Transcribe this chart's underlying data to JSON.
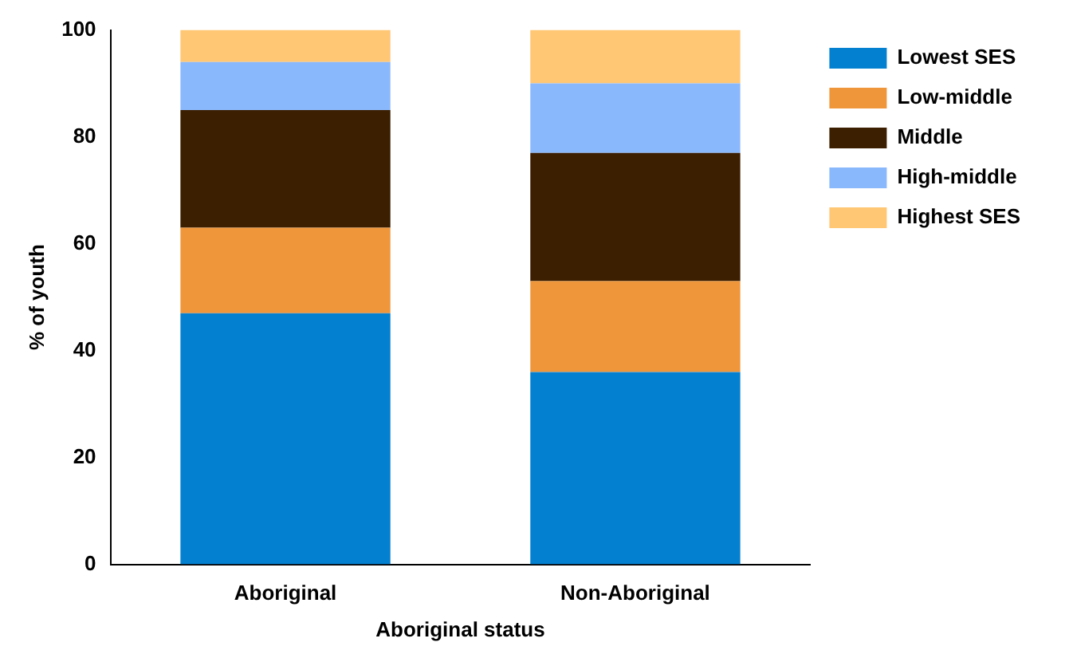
{
  "chart_data": {
    "type": "bar",
    "stacked": true,
    "xlabel": "Aboriginal status",
    "ylabel": "% of youth",
    "categories": [
      "Aboriginal",
      "Non-Aboriginal"
    ],
    "series": [
      {
        "name": "Lowest SES",
        "color": "#0480d1",
        "values": [
          47,
          36
        ]
      },
      {
        "name": "Low-middle",
        "color": "#f0963a",
        "values": [
          16,
          17
        ]
      },
      {
        "name": "Middle",
        "color": "#3c1e00",
        "values": [
          22,
          24
        ]
      },
      {
        "name": "High-middle",
        "color": "#8ab8fc",
        "values": [
          9,
          13
        ]
      },
      {
        "name": "Highest SES",
        "color": "#ffc674",
        "values": [
          6,
          10
        ]
      }
    ],
    "ylim": [
      0,
      100
    ],
    "yticks": [
      0,
      20,
      40,
      60,
      80,
      100
    ],
    "grid": false,
    "legend": "top right"
  }
}
